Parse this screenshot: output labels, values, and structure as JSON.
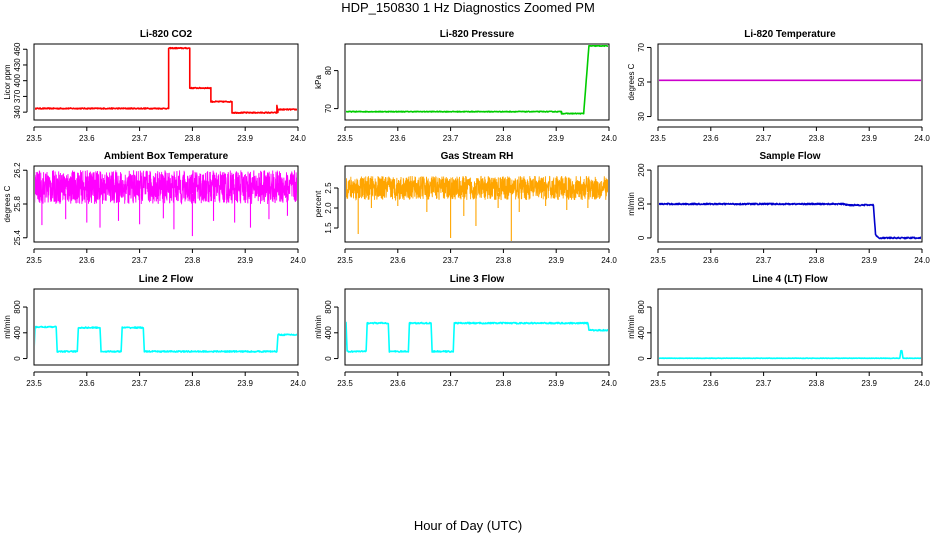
{
  "page": {
    "title": "HDP_150830  1 Hz Diagnostics Zoomed PM",
    "xlabel": "Hour of Day (UTC)"
  },
  "chart_data": [
    {
      "type": "line",
      "title": "Li-820 CO2",
      "ylabel": "Licor ppm",
      "color": "#ff0000",
      "xlim": [
        23.5,
        24.0
      ],
      "ylim": [
        325,
        470
      ],
      "xticks": [
        "23.5",
        "23.6",
        "23.7",
        "23.8",
        "23.9",
        "24.0"
      ],
      "yticks": [
        340,
        370,
        400,
        430,
        460
      ],
      "noise": 1,
      "series": [
        {
          "name": "Li-820 CO2",
          "x": [
            23.5,
            23.755,
            23.755,
            23.795,
            23.795,
            23.835,
            23.835,
            23.875,
            23.875,
            23.96,
            23.96,
            23.962,
            23.962,
            24.0
          ],
          "y": [
            347,
            347,
            462,
            462,
            386,
            386,
            360,
            360,
            339,
            339,
            352,
            340,
            345,
            345
          ]
        }
      ]
    },
    {
      "type": "line",
      "title": "Li-820 Pressure",
      "ylabel": "kPa",
      "color": "#00cc00",
      "xlim": [
        23.5,
        24.0
      ],
      "ylim": [
        67,
        87
      ],
      "xticks": [
        "23.5",
        "23.6",
        "23.7",
        "23.8",
        "23.9",
        "24.0"
      ],
      "yticks": [
        70,
        80
      ],
      "noise": 0.1,
      "series": [
        {
          "name": "Li-820 Pressure",
          "x": [
            23.5,
            23.91,
            23.91,
            23.952,
            23.962,
            23.965,
            24.0
          ],
          "y": [
            69.2,
            69.2,
            68.7,
            68.7,
            86.5,
            86.5,
            86.5
          ]
        }
      ]
    },
    {
      "type": "line",
      "title": "Li-820 Temperature",
      "ylabel": "degrees C",
      "color": "#cc00cc",
      "xlim": [
        23.5,
        24.0
      ],
      "ylim": [
        28,
        72
      ],
      "xticks": [
        "23.5",
        "23.6",
        "23.7",
        "23.8",
        "23.9",
        "24.0"
      ],
      "yticks": [
        30,
        50,
        70
      ],
      "noise": 0,
      "series": [
        {
          "name": "Li-820 Temperature",
          "x": [
            23.5,
            24.0
          ],
          "y": [
            51,
            51
          ]
        }
      ]
    },
    {
      "type": "line",
      "title": "Ambient Box Temperature",
      "ylabel": "degrees C",
      "color": "#ff00ff",
      "xlim": [
        23.5,
        24.0
      ],
      "ylim": [
        25.35,
        26.25
      ],
      "xticks": [
        "23.5",
        "23.6",
        "23.7",
        "23.8",
        "23.9",
        "24.0"
      ],
      "yticks": [
        25.4,
        25.8,
        26.2
      ],
      "band": [
        25.8,
        26.2
      ],
      "spikes": [
        [
          23.515,
          25.55
        ],
        [
          23.56,
          25.62
        ],
        [
          23.6,
          25.58
        ],
        [
          23.625,
          25.52
        ],
        [
          23.66,
          25.6
        ],
        [
          23.7,
          25.56
        ],
        [
          23.745,
          25.63
        ],
        [
          23.765,
          25.5
        ],
        [
          23.8,
          25.42
        ],
        [
          23.84,
          25.6
        ],
        [
          23.88,
          25.58
        ],
        [
          23.91,
          25.52
        ],
        [
          23.945,
          25.62
        ],
        [
          23.98,
          25.66
        ]
      ],
      "series": [
        {
          "name": "Ambient Box Temperature",
          "x": [
            23.5,
            24.0
          ],
          "y": [
            25.8,
            26.2
          ]
        }
      ]
    },
    {
      "type": "line",
      "title": "Gas Stream RH",
      "ylabel": "percent",
      "color": "#ffa500",
      "xlim": [
        23.5,
        24.0
      ],
      "ylim": [
        1.15,
        3.05
      ],
      "xticks": [
        "23.5",
        "23.6",
        "23.7",
        "23.8",
        "23.9",
        "24.0"
      ],
      "yticks": [
        1.5,
        2.0,
        2.5
      ],
      "band": [
        2.2,
        2.8
      ],
      "spikes": [
        [
          23.525,
          1.35
        ],
        [
          23.55,
          2.0
        ],
        [
          23.6,
          2.05
        ],
        [
          23.655,
          1.9
        ],
        [
          23.7,
          1.25
        ],
        [
          23.725,
          1.8
        ],
        [
          23.748,
          1.55
        ],
        [
          23.79,
          2.0
        ],
        [
          23.815,
          1.15
        ],
        [
          23.83,
          1.9
        ],
        [
          23.88,
          2.05
        ],
        [
          23.92,
          1.95
        ],
        [
          23.96,
          2.0
        ]
      ],
      "series": [
        {
          "name": "Gas Stream RH",
          "x": [
            23.5,
            24.0
          ],
          "y": [
            2.2,
            2.8
          ]
        }
      ]
    },
    {
      "type": "line",
      "title": "Sample Flow",
      "ylabel": "ml/min",
      "color": "#0000cc",
      "xlim": [
        23.5,
        24.0
      ],
      "ylim": [
        -12,
        212
      ],
      "xticks": [
        "23.5",
        "23.6",
        "23.7",
        "23.8",
        "23.9",
        "24.0"
      ],
      "yticks": [
        0,
        100,
        200
      ],
      "noise": 2,
      "series": [
        {
          "name": "Sample Flow",
          "x": [
            23.5,
            23.85,
            23.86,
            23.908,
            23.912,
            23.918,
            24.0
          ],
          "y": [
            100,
            100,
            97,
            97,
            10,
            0,
            0
          ]
        }
      ]
    },
    {
      "type": "line",
      "title": "Line 2 Flow",
      "ylabel": "ml/min",
      "color": "#00ffff",
      "xlim": [
        23.5,
        24.0
      ],
      "ylim": [
        -100,
        1080
      ],
      "xticks": [
        "23.5",
        "23.6",
        "23.7",
        "23.8",
        "23.9",
        "24.0"
      ],
      "yticks": [
        0,
        400,
        800
      ],
      "noise": 10,
      "series": [
        {
          "name": "Line 2 Flow",
          "x": [
            23.5,
            23.502,
            23.542,
            23.544,
            23.582,
            23.584,
            23.625,
            23.627,
            23.665,
            23.667,
            23.707,
            23.709,
            23.96,
            23.962,
            24.0
          ],
          "y": [
            110,
            490,
            490,
            110,
            110,
            480,
            480,
            110,
            110,
            480,
            480,
            110,
            110,
            370,
            370
          ]
        }
      ]
    },
    {
      "type": "line",
      "title": "Line 3 Flow",
      "ylabel": "ml/min",
      "color": "#00ffff",
      "xlim": [
        23.5,
        24.0
      ],
      "ylim": [
        -100,
        1080
      ],
      "xticks": [
        "23.5",
        "23.6",
        "23.7",
        "23.8",
        "23.9",
        "24.0"
      ],
      "yticks": [
        0,
        400,
        800
      ],
      "noise": 10,
      "series": [
        {
          "name": "Line 3 Flow",
          "x": [
            23.5,
            23.502,
            23.504,
            23.54,
            23.542,
            23.582,
            23.584,
            23.62,
            23.622,
            23.663,
            23.665,
            23.705,
            23.707,
            23.96,
            23.962,
            24.0
          ],
          "y": [
            110,
            560,
            110,
            110,
            550,
            550,
            110,
            110,
            550,
            550,
            110,
            110,
            550,
            550,
            440,
            440
          ]
        }
      ]
    },
    {
      "type": "line",
      "title": "Line 4 (LT) Flow",
      "ylabel": "ml/min",
      "color": "#00ffff",
      "xlim": [
        23.5,
        24.0
      ],
      "ylim": [
        -100,
        1080
      ],
      "xticks": [
        "23.5",
        "23.6",
        "23.7",
        "23.8",
        "23.9",
        "24.0"
      ],
      "yticks": [
        0,
        400,
        800
      ],
      "noise": 3,
      "series": [
        {
          "name": "Line 4 (LT) Flow",
          "x": [
            23.5,
            23.958,
            23.96,
            23.962,
            23.964,
            24.0
          ],
          "y": [
            5,
            5,
            120,
            120,
            5,
            5
          ]
        }
      ]
    }
  ]
}
